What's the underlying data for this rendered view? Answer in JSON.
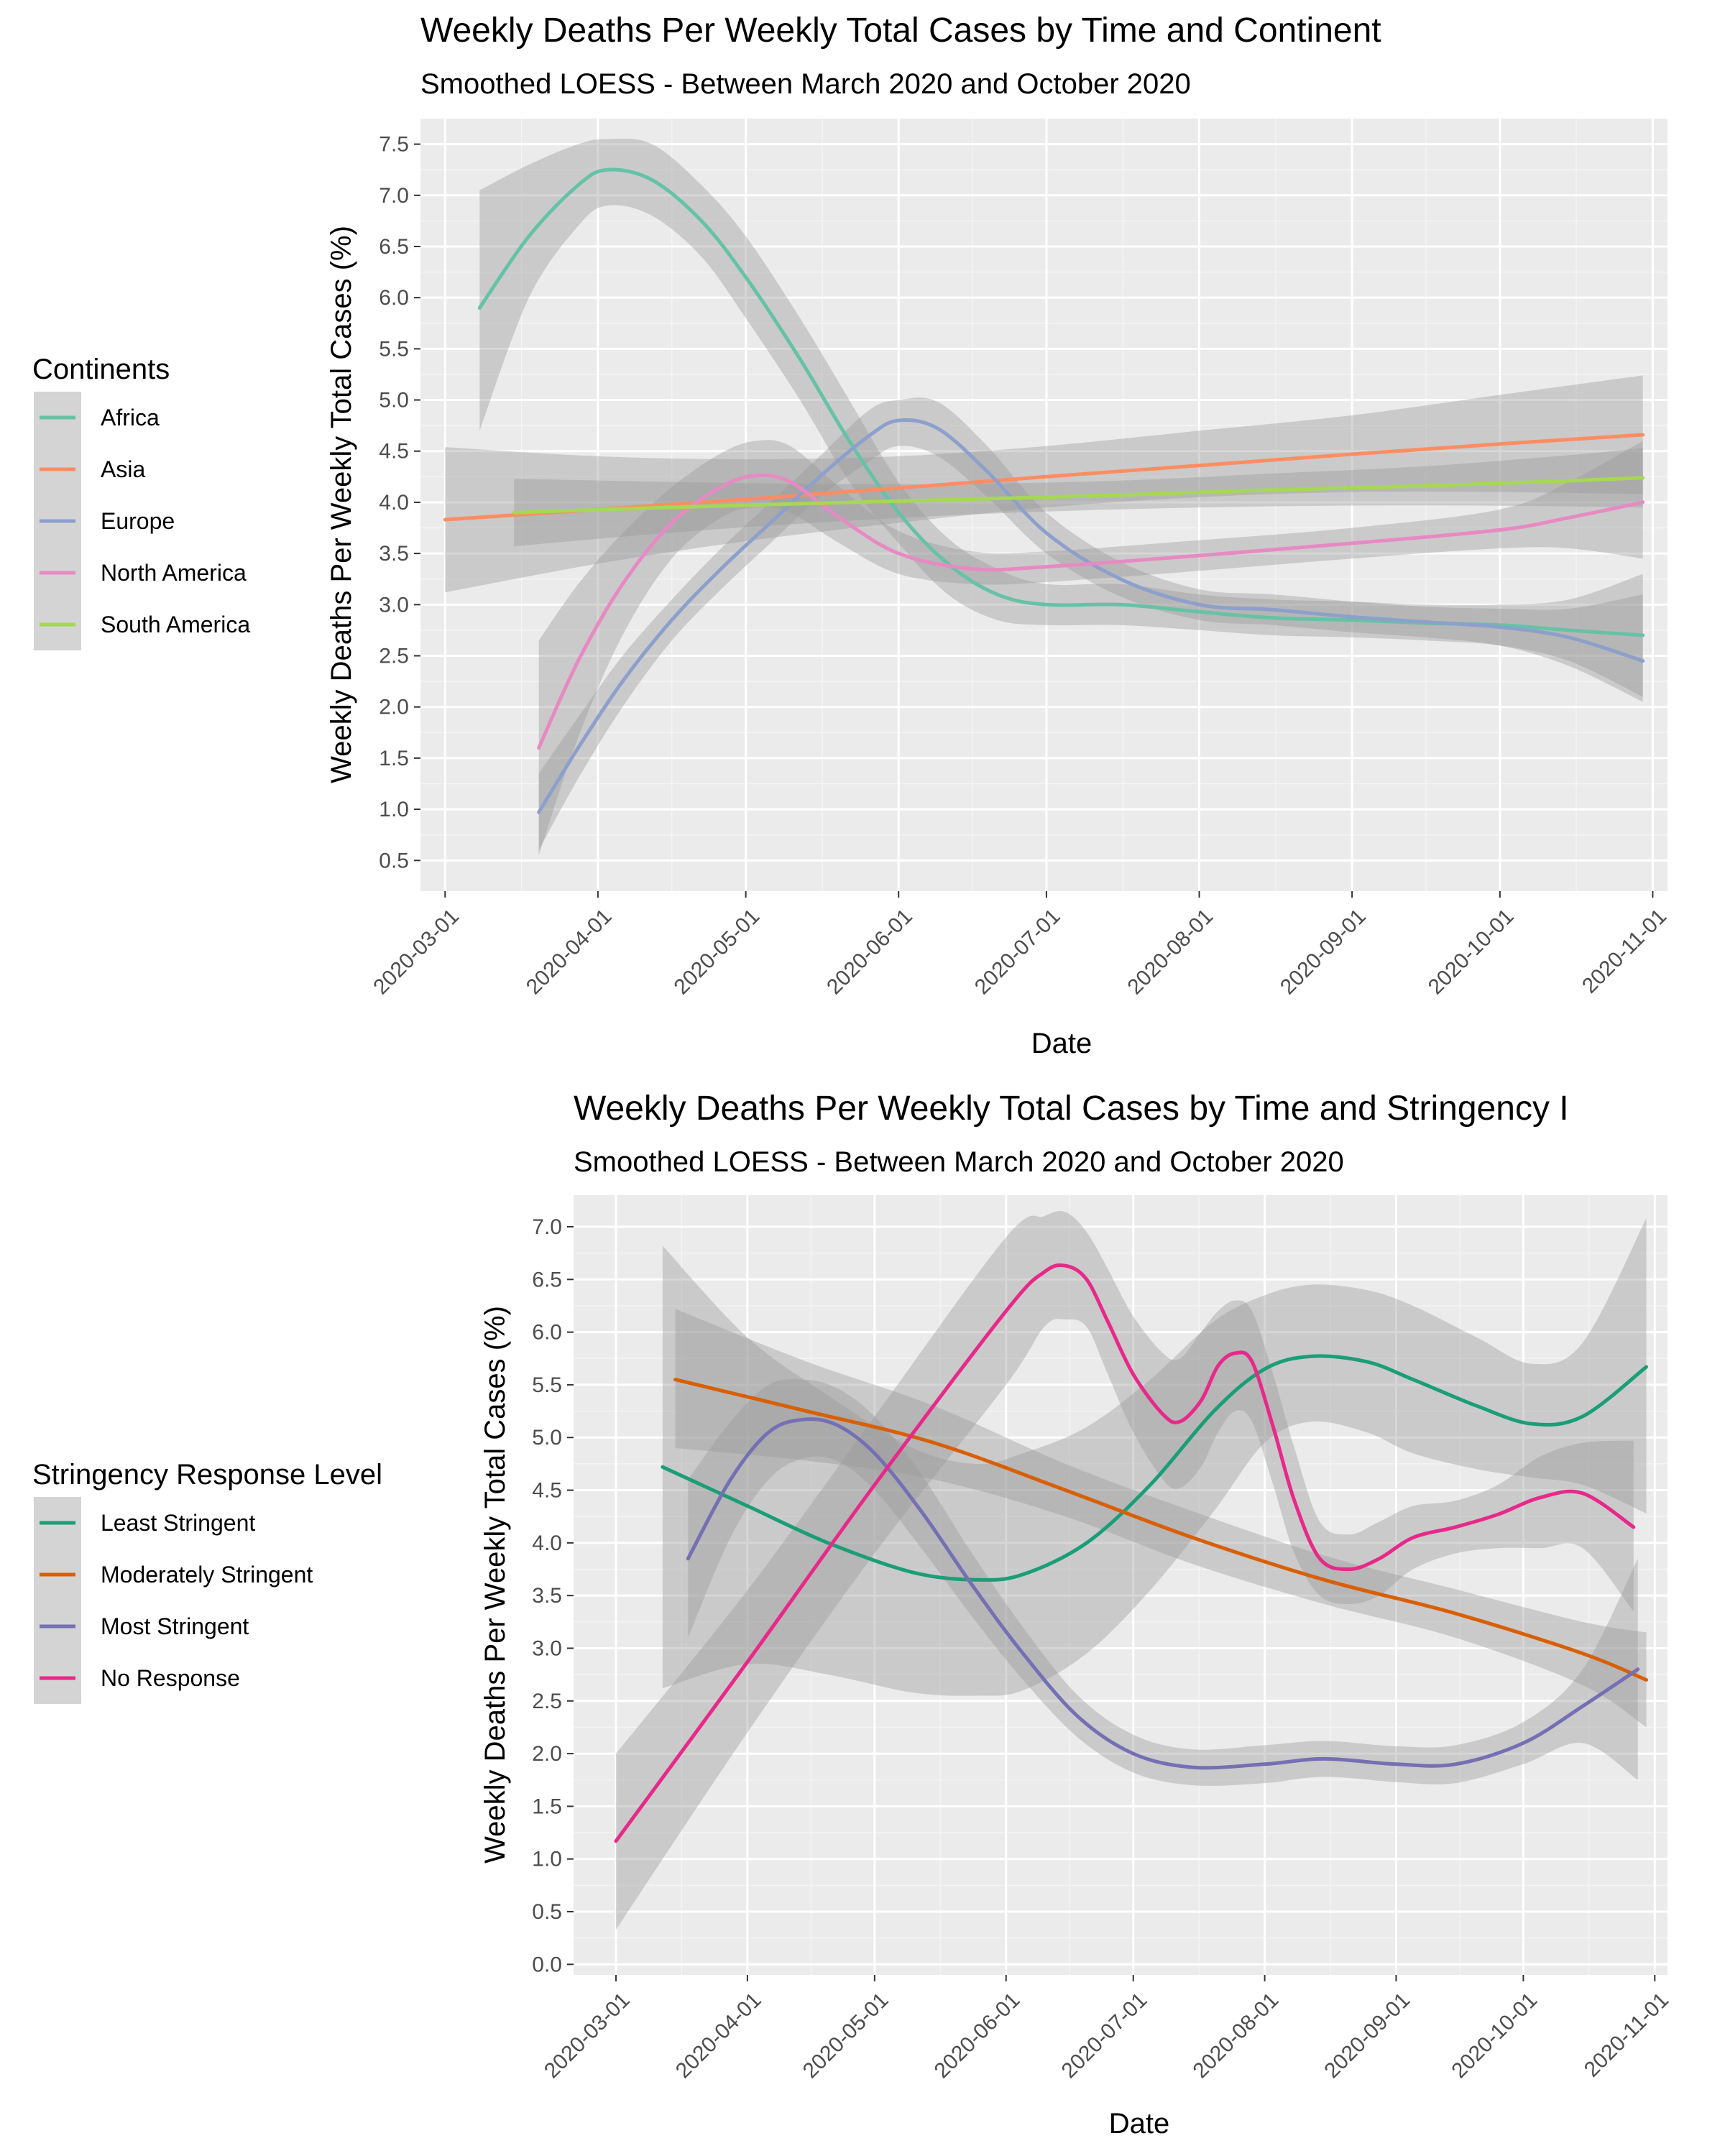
{
  "chart_data": [
    {
      "type": "line",
      "title": "Weekly Deaths Per Weekly Total Cases by Time and Continent",
      "subtitle": "Smoothed LOESS - Between March 2020 and October 2020",
      "xlabel": "Date",
      "ylabel": "Weekly Deaths Per Weekly Total Cases (%)",
      "legend_title": "Continents",
      "legend_position": "left",
      "grid": true,
      "xlim": [
        "2020-02-25",
        "2020-11-04"
      ],
      "ylim": [
        0.2,
        7.75
      ],
      "x_ticks": [
        "2020-03-01",
        "2020-04-01",
        "2020-05-01",
        "2020-06-01",
        "2020-07-01",
        "2020-08-01",
        "2020-09-01",
        "2020-10-01",
        "2020-11-01"
      ],
      "y_ticks": [
        0.5,
        1.0,
        1.5,
        2.0,
        2.5,
        3.0,
        3.5,
        4.0,
        4.5,
        5.0,
        5.5,
        6.0,
        6.5,
        7.0,
        7.5
      ],
      "series": [
        {
          "name": "Africa",
          "color": "#66c2a5",
          "x": [
            "2020-03-08",
            "2020-03-18",
            "2020-03-28",
            "2020-04-03",
            "2020-04-12",
            "2020-04-22",
            "2020-05-01",
            "2020-05-12",
            "2020-05-22",
            "2020-06-01",
            "2020-06-11",
            "2020-06-21",
            "2020-07-01",
            "2020-07-16",
            "2020-08-01",
            "2020-08-16",
            "2020-09-01",
            "2020-09-16",
            "2020-10-01",
            "2020-10-15",
            "2020-10-30"
          ],
          "values": [
            5.9,
            6.6,
            7.1,
            7.25,
            7.15,
            6.75,
            6.2,
            5.4,
            4.6,
            3.9,
            3.4,
            3.1,
            3.0,
            3.0,
            2.93,
            2.87,
            2.85,
            2.82,
            2.8,
            2.75,
            2.7
          ],
          "lower": [
            4.7,
            6.0,
            6.7,
            6.9,
            6.8,
            6.4,
            5.8,
            5.0,
            4.2,
            3.6,
            3.1,
            2.85,
            2.8,
            2.8,
            2.75,
            2.7,
            2.68,
            2.65,
            2.6,
            2.45,
            2.1
          ],
          "upper": [
            7.05,
            7.3,
            7.5,
            7.55,
            7.5,
            7.1,
            6.6,
            5.8,
            5.0,
            4.2,
            3.65,
            3.35,
            3.2,
            3.2,
            3.1,
            3.05,
            3.03,
            3.0,
            3.0,
            3.05,
            3.3
          ]
        },
        {
          "name": "Asia",
          "color": "#fc8d62",
          "x": [
            "2020-03-01",
            "2020-04-01",
            "2020-05-01",
            "2020-06-01",
            "2020-07-01",
            "2020-08-01",
            "2020-09-01",
            "2020-10-01",
            "2020-10-30"
          ],
          "values": [
            3.83,
            3.93,
            4.03,
            4.14,
            4.25,
            4.36,
            4.47,
            4.57,
            4.66
          ],
          "lower": [
            3.12,
            3.4,
            3.62,
            3.8,
            3.95,
            4.05,
            4.1,
            4.1,
            4.08
          ],
          "upper": [
            4.54,
            4.45,
            4.42,
            4.45,
            4.55,
            4.7,
            4.85,
            5.05,
            5.24
          ]
        },
        {
          "name": "Europe",
          "color": "#8da0cb",
          "x": [
            "2020-03-20",
            "2020-03-28",
            "2020-04-06",
            "2020-04-16",
            "2020-04-26",
            "2020-05-06",
            "2020-05-16",
            "2020-05-26",
            "2020-06-01",
            "2020-06-09",
            "2020-06-19",
            "2020-07-01",
            "2020-07-16",
            "2020-08-01",
            "2020-08-16",
            "2020-09-01",
            "2020-09-16",
            "2020-10-01",
            "2020-10-15",
            "2020-10-30"
          ],
          "values": [
            0.97,
            1.6,
            2.25,
            2.85,
            3.35,
            3.8,
            4.25,
            4.65,
            4.8,
            4.72,
            4.3,
            3.7,
            3.25,
            3.0,
            2.95,
            2.88,
            2.83,
            2.78,
            2.68,
            2.45
          ],
          "lower": [
            0.6,
            1.3,
            2.0,
            2.65,
            3.15,
            3.6,
            4.05,
            4.4,
            4.55,
            4.45,
            4.05,
            3.5,
            3.08,
            2.85,
            2.8,
            2.73,
            2.68,
            2.6,
            2.4,
            2.05
          ],
          "upper": [
            1.35,
            1.9,
            2.5,
            3.05,
            3.55,
            4.0,
            4.45,
            4.9,
            5.0,
            4.98,
            4.55,
            3.9,
            3.42,
            3.15,
            3.1,
            3.03,
            2.98,
            2.96,
            2.96,
            3.1
          ]
        },
        {
          "name": "North America",
          "color": "#e78ac3",
          "x": [
            "2020-03-20",
            "2020-03-28",
            "2020-04-06",
            "2020-04-16",
            "2020-04-26",
            "2020-05-03",
            "2020-05-10",
            "2020-05-20",
            "2020-06-01",
            "2020-06-16",
            "2020-07-01",
            "2020-08-01",
            "2020-09-01",
            "2020-10-01",
            "2020-10-15",
            "2020-10-30"
          ],
          "values": [
            1.6,
            2.45,
            3.2,
            3.8,
            4.15,
            4.26,
            4.2,
            3.85,
            3.5,
            3.35,
            3.37,
            3.48,
            3.6,
            3.73,
            3.85,
            4.0
          ],
          "lower": [
            0.55,
            1.7,
            2.7,
            3.45,
            3.85,
            3.95,
            3.9,
            3.6,
            3.3,
            3.2,
            3.22,
            3.33,
            3.45,
            3.55,
            3.55,
            3.45
          ],
          "upper": [
            2.65,
            3.2,
            3.7,
            4.15,
            4.48,
            4.6,
            4.55,
            4.15,
            3.72,
            3.52,
            3.52,
            3.63,
            3.75,
            3.93,
            4.2,
            4.6
          ]
        },
        {
          "name": "South America",
          "color": "#a6d854",
          "x": [
            "2020-03-15",
            "2020-04-15",
            "2020-05-15",
            "2020-06-15",
            "2020-07-15",
            "2020-08-15",
            "2020-09-15",
            "2020-10-15",
            "2020-10-30"
          ],
          "values": [
            3.9,
            3.95,
            3.99,
            4.03,
            4.07,
            4.12,
            4.16,
            4.21,
            4.24
          ],
          "lower": [
            3.57,
            3.7,
            3.8,
            3.88,
            3.93,
            3.96,
            3.97,
            3.96,
            3.95
          ],
          "upper": [
            4.23,
            4.2,
            4.18,
            4.18,
            4.21,
            4.28,
            4.35,
            4.46,
            4.53
          ]
        }
      ]
    },
    {
      "type": "line",
      "title": "Weekly Deaths Per Weekly Total Cases by Time and Stringency I",
      "subtitle": "Smoothed LOESS - Between March 2020 and October 2020",
      "xlabel": "Date",
      "ylabel": "Weekly Deaths Per Weekly Total Cases (%)",
      "legend_title": "Stringency Response Level",
      "legend_position": "left",
      "grid": true,
      "xlim": [
        "2020-02-20",
        "2020-11-04"
      ],
      "ylim": [
        -0.1,
        7.3
      ],
      "x_ticks": [
        "2020-03-01",
        "2020-04-01",
        "2020-05-01",
        "2020-06-01",
        "2020-07-01",
        "2020-08-01",
        "2020-09-01",
        "2020-10-01",
        "2020-11-01"
      ],
      "y_ticks": [
        0.0,
        0.5,
        1.0,
        1.5,
        2.0,
        2.5,
        3.0,
        3.5,
        4.0,
        4.5,
        5.0,
        5.5,
        6.0,
        6.5,
        7.0
      ],
      "series": [
        {
          "name": "Least Stringent",
          "color": "#1b9e77",
          "x": [
            "2020-03-12",
            "2020-04-01",
            "2020-04-20",
            "2020-05-10",
            "2020-05-25",
            "2020-06-05",
            "2020-06-20",
            "2020-07-05",
            "2020-07-20",
            "2020-08-01",
            "2020-08-12",
            "2020-08-25",
            "2020-09-05",
            "2020-09-20",
            "2020-10-03",
            "2020-10-15",
            "2020-10-30"
          ],
          "values": [
            4.72,
            4.35,
            4.0,
            3.72,
            3.65,
            3.7,
            4.0,
            4.55,
            5.25,
            5.65,
            5.77,
            5.72,
            5.55,
            5.3,
            5.13,
            5.2,
            5.67
          ],
          "lower": [
            2.62,
            2.85,
            2.75,
            2.58,
            2.55,
            2.6,
            2.95,
            3.55,
            4.3,
            4.95,
            5.15,
            5.05,
            4.85,
            4.7,
            4.62,
            4.55,
            4.28
          ],
          "upper": [
            6.82,
            5.95,
            5.4,
            4.9,
            4.75,
            4.85,
            5.1,
            5.55,
            6.1,
            6.35,
            6.45,
            6.4,
            6.25,
            5.95,
            5.7,
            5.9,
            7.08
          ]
        },
        {
          "name": "Moderately Stringent",
          "color": "#d95f02",
          "x": [
            "2020-03-15",
            "2020-04-15",
            "2020-05-15",
            "2020-06-15",
            "2020-07-15",
            "2020-08-15",
            "2020-09-15",
            "2020-10-15",
            "2020-10-30"
          ],
          "values": [
            5.55,
            5.25,
            4.95,
            4.5,
            4.05,
            3.65,
            3.33,
            2.95,
            2.7
          ],
          "lower": [
            4.9,
            4.78,
            4.6,
            4.25,
            3.8,
            3.42,
            3.1,
            2.65,
            2.25
          ],
          "upper": [
            6.22,
            5.72,
            5.3,
            4.75,
            4.3,
            3.88,
            3.56,
            3.25,
            3.15
          ]
        },
        {
          "name": "Most Stringent",
          "color": "#7570b3",
          "x": [
            "2020-03-18",
            "2020-03-28",
            "2020-04-06",
            "2020-04-14",
            "2020-04-22",
            "2020-05-01",
            "2020-05-12",
            "2020-05-24",
            "2020-06-05",
            "2020-06-18",
            "2020-07-01",
            "2020-07-15",
            "2020-08-01",
            "2020-08-15",
            "2020-09-01",
            "2020-09-15",
            "2020-10-01",
            "2020-10-15",
            "2020-10-28"
          ],
          "values": [
            3.85,
            4.6,
            5.05,
            5.17,
            5.12,
            4.85,
            4.3,
            3.6,
            2.95,
            2.35,
            2.0,
            1.87,
            1.9,
            1.95,
            1.9,
            1.9,
            2.1,
            2.45,
            2.8
          ],
          "lower": [
            3.1,
            4.05,
            4.6,
            4.8,
            4.78,
            4.5,
            3.95,
            3.3,
            2.7,
            2.15,
            1.82,
            1.7,
            1.72,
            1.78,
            1.73,
            1.72,
            1.9,
            2.1,
            1.75
          ],
          "upper": [
            4.6,
            5.15,
            5.5,
            5.55,
            5.47,
            5.2,
            4.65,
            3.9,
            3.2,
            2.55,
            2.18,
            2.04,
            2.08,
            2.12,
            2.07,
            2.08,
            2.3,
            2.8,
            3.85
          ]
        },
        {
          "name": "No Response",
          "color": "#e7298a",
          "x": [
            "2020-03-01",
            "2020-04-01",
            "2020-05-01",
            "2020-06-01",
            "2020-06-10",
            "2020-06-15",
            "2020-06-20",
            "2020-06-25",
            "2020-07-01",
            "2020-07-08",
            "2020-07-12",
            "2020-07-17",
            "2020-07-21",
            "2020-07-25",
            "2020-07-29",
            "2020-08-03",
            "2020-08-08",
            "2020-08-14",
            "2020-08-21",
            "2020-08-28",
            "2020-09-05",
            "2020-09-15",
            "2020-09-25",
            "2020-10-05",
            "2020-10-15",
            "2020-10-27"
          ],
          "values": [
            1.17,
            2.87,
            4.55,
            6.2,
            6.57,
            6.63,
            6.5,
            6.1,
            5.6,
            5.22,
            5.15,
            5.35,
            5.68,
            5.8,
            5.72,
            5.1,
            4.4,
            3.85,
            3.75,
            3.85,
            4.05,
            4.15,
            4.27,
            4.43,
            4.47,
            4.15
          ],
          "lower": [
            0.33,
            2.2,
            3.9,
            5.5,
            6.05,
            6.12,
            6.05,
            5.6,
            5.05,
            4.6,
            4.52,
            4.72,
            5.05,
            5.25,
            5.15,
            4.55,
            3.9,
            3.5,
            3.42,
            3.5,
            3.75,
            3.9,
            3.95,
            3.95,
            3.95,
            3.35
          ],
          "upper": [
            2.0,
            3.55,
            5.2,
            6.9,
            7.1,
            7.14,
            6.95,
            6.6,
            6.15,
            5.8,
            5.75,
            6.0,
            6.2,
            6.3,
            6.2,
            5.6,
            4.9,
            4.2,
            4.08,
            4.2,
            4.35,
            4.4,
            4.55,
            4.82,
            4.95,
            4.97
          ]
        }
      ]
    }
  ]
}
